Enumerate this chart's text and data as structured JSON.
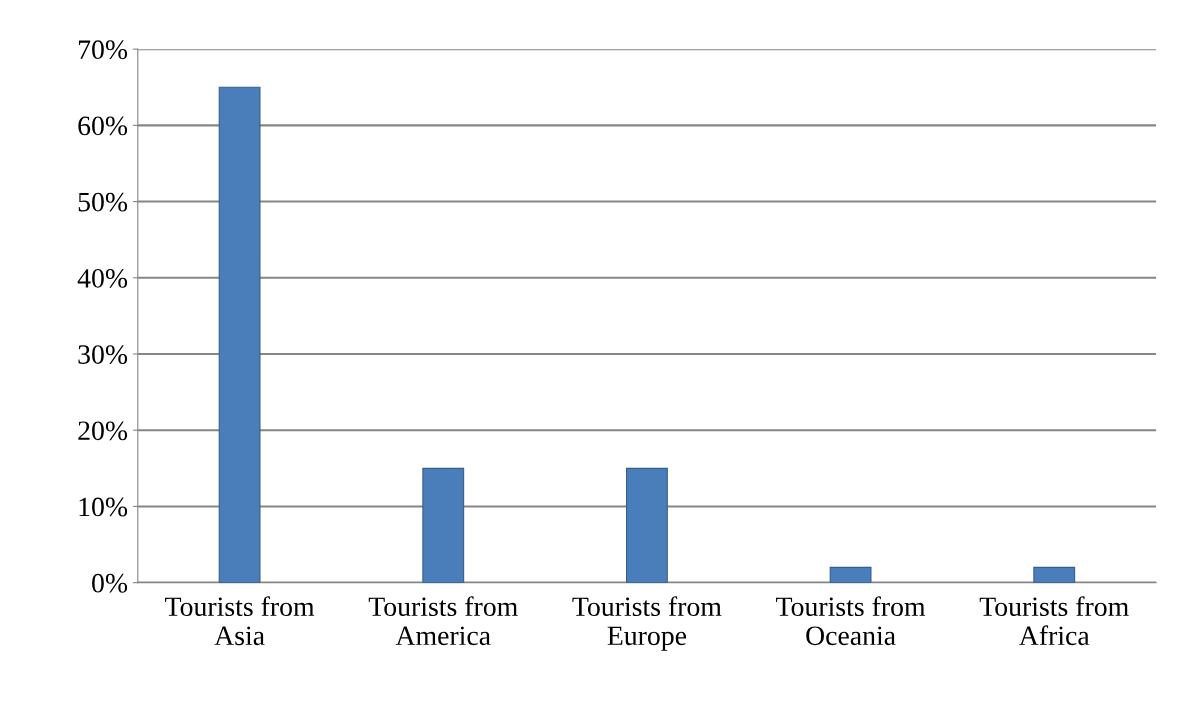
{
  "chart_data": {
    "type": "bar",
    "categories": [
      "Tourists from Asia",
      "Tourists from America",
      "Tourists from Europe",
      "Tourists from Oceania",
      "Tourists from Africa"
    ],
    "values": [
      65,
      15,
      15,
      2,
      2
    ],
    "color": "#4a7ebb",
    "ylim": [
      0,
      70
    ],
    "yticks": [
      {
        "value": 0,
        "label": "0%"
      },
      {
        "value": 10,
        "label": "10%"
      },
      {
        "value": 20,
        "label": "20%"
      },
      {
        "value": 30,
        "label": "30%"
      },
      {
        "value": 40,
        "label": "40%"
      },
      {
        "value": 50,
        "label": "50%"
      },
      {
        "value": 60,
        "label": "60%"
      },
      {
        "value": 70,
        "label": "70%"
      }
    ],
    "grid": "y"
  }
}
